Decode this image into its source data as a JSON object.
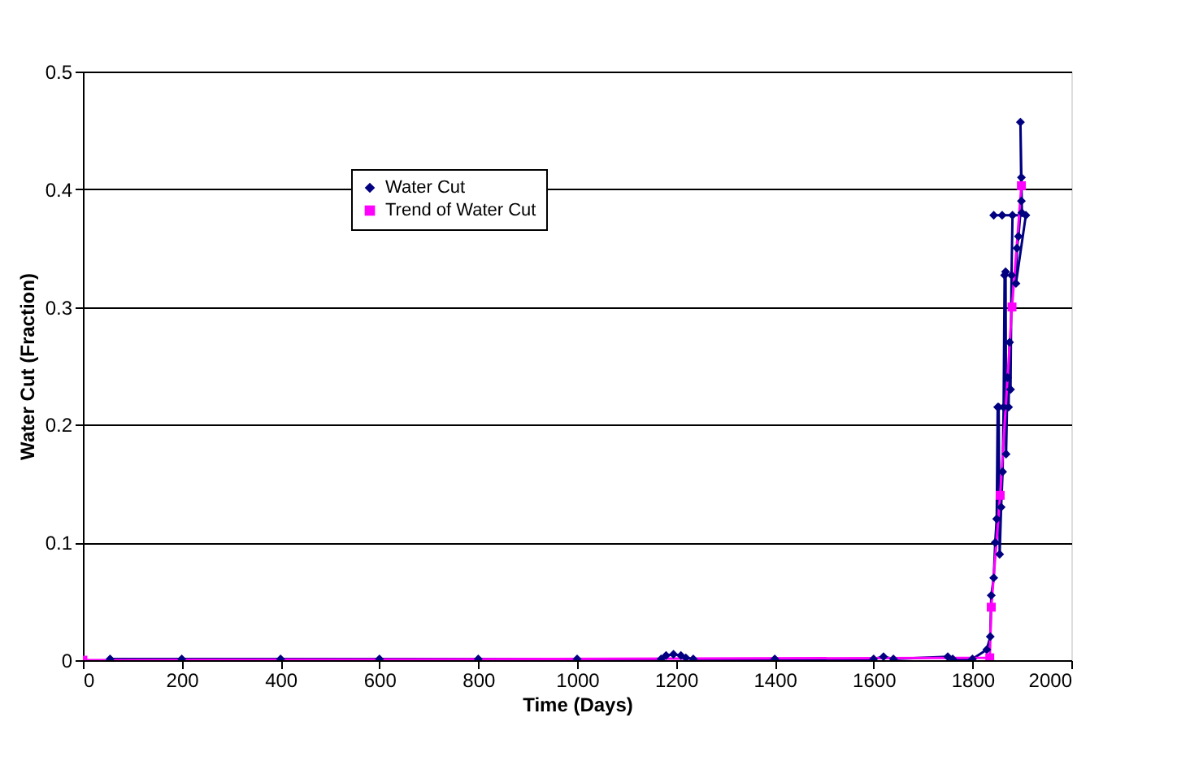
{
  "chart_data": {
    "type": "line",
    "xlabel": "Time (Days)",
    "ylabel": "Water Cut (Fraction)",
    "xlim": [
      0,
      2000
    ],
    "xticks": [
      0,
      200,
      400,
      600,
      800,
      1000,
      1200,
      1400,
      1600,
      1800,
      2000
    ],
    "ylim": [
      0,
      0.5
    ],
    "yticks": [
      0,
      0.1,
      0.2,
      0.3,
      0.4,
      0.5
    ],
    "grid": "y",
    "legend": "top left",
    "line_style": "solid",
    "series": [
      {
        "name": "Water Cut",
        "color": "#000080",
        "marker": "diamond",
        "x": [
          55,
          200,
          400,
          600,
          800,
          1000,
          1170,
          1180,
          1195,
          1210,
          1220,
          1235,
          1400,
          1600,
          1620,
          1640,
          1750,
          1760,
          1800,
          1829,
          1836,
          1838,
          1843,
          1846,
          1849,
          1851,
          1853,
          1855,
          1858,
          1861,
          1863,
          1865,
          1867,
          1868,
          1871,
          1873,
          1875,
          1877,
          1879,
          1881,
          1843,
          1860,
          1908,
          1888,
          1890,
          1893,
          1899,
          1897,
          1899,
          1900
        ],
        "values": [
          0.001,
          0.001,
          0.001,
          0.001,
          0.001,
          0.001,
          0.001,
          0.004,
          0.005,
          0.004,
          0.002,
          0.001,
          0.001,
          0.001,
          0.003,
          0.001,
          0.003,
          0.001,
          0.001,
          0.009,
          0.02,
          0.055,
          0.07,
          0.1,
          0.12,
          0.215,
          0.215,
          0.09,
          0.13,
          0.16,
          0.215,
          0.327,
          0.33,
          0.175,
          0.24,
          0.215,
          0.27,
          0.23,
          0.327,
          0.378,
          0.378,
          0.378,
          0.378,
          0.32,
          0.35,
          0.36,
          0.39,
          0.457,
          0.41,
          0.38
        ]
      },
      {
        "name": "Trend of Water Cut",
        "color": "#ff00ff",
        "marker": "square",
        "x": [
          0,
          1835,
          1838,
          1856,
          1880,
          1899
        ],
        "values": [
          0,
          0.002,
          0.045,
          0.14,
          0.3,
          0.403
        ]
      }
    ]
  }
}
